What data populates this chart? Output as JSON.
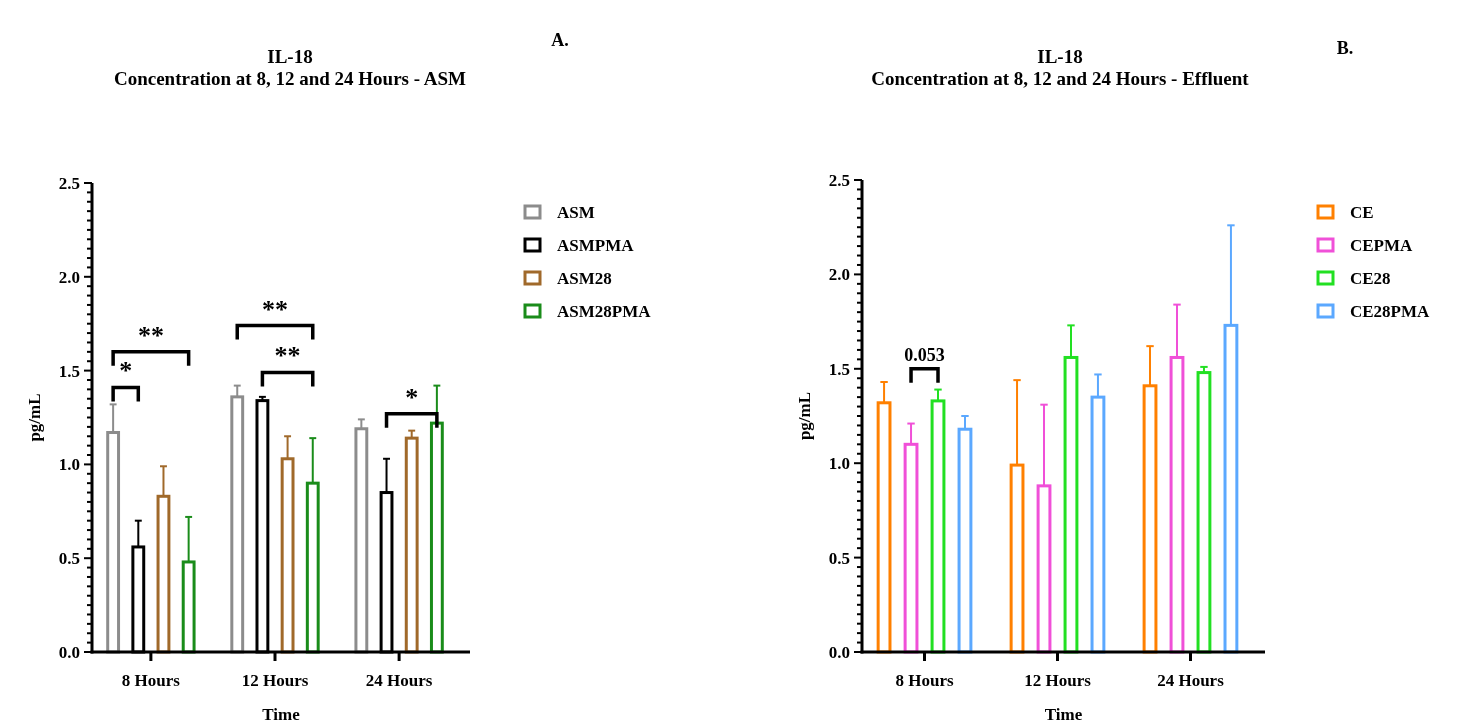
{
  "chart_data": [
    {
      "type": "bar",
      "title": "IL-18\nConcentration at 8, 12 and 24 Hours - ASM",
      "xlabel": "Time",
      "ylabel": "pg/mL",
      "categories": [
        "8 Hours",
        "12 Hours",
        "24 Hours"
      ],
      "series": [
        {
          "name": "ASM",
          "color": "#8c8c8c",
          "values": [
            1.17,
            1.36,
            1.19
          ],
          "errors": [
            [
              1.17,
              1.32
            ],
            [
              1.36,
              1.42
            ],
            [
              1.19,
              1.24
            ]
          ]
        },
        {
          "name": "ASMPMA",
          "color": "#000000",
          "values": [
            0.56,
            1.34,
            0.85
          ],
          "errors": [
            [
              0.56,
              0.7
            ],
            [
              1.34,
              1.36
            ],
            [
              0.85,
              1.03
            ]
          ]
        },
        {
          "name": "ASM28",
          "color": "#a0692a",
          "values": [
            0.83,
            1.03,
            1.14
          ],
          "errors": [
            [
              0.83,
              0.99
            ],
            [
              1.03,
              1.15
            ],
            [
              1.14,
              1.18
            ]
          ]
        },
        {
          "name": "ASM28PMA",
          "color": "#1a8c1a",
          "values": [
            0.48,
            0.9,
            1.22
          ],
          "errors": [
            [
              0.48,
              0.72
            ],
            [
              0.9,
              1.14
            ],
            [
              1.22,
              1.42
            ]
          ]
        }
      ],
      "ylim": [
        0,
        2.5
      ],
      "yticks": [
        {
          "value": 0,
          "label": "0.0"
        },
        {
          "value": 0.05,
          "label": null
        },
        {
          "value": 0.1,
          "label": null
        },
        {
          "value": 0.15,
          "label": null
        },
        {
          "value": 0.2,
          "label": null
        },
        {
          "value": 0.25,
          "label": null
        },
        {
          "value": 0.3,
          "label": null
        },
        {
          "value": 0.35,
          "label": null
        },
        {
          "value": 0.4,
          "label": null
        },
        {
          "value": 0.45,
          "label": null
        },
        {
          "value": 0.5,
          "label": "0.5"
        },
        {
          "value": 0.55,
          "label": null
        },
        {
          "value": 0.6,
          "label": null
        },
        {
          "value": 0.65,
          "label": null
        },
        {
          "value": 0.7,
          "label": null
        },
        {
          "value": 0.75,
          "label": null
        },
        {
          "value": 0.8,
          "label": null
        },
        {
          "value": 0.85,
          "label": null
        },
        {
          "value": 0.9,
          "label": null
        },
        {
          "value": 0.95,
          "label": null
        },
        {
          "value": 1,
          "label": "1.0"
        },
        {
          "value": 1.05,
          "label": null
        },
        {
          "value": 1.1,
          "label": null
        },
        {
          "value": 1.15,
          "label": null
        },
        {
          "value": 1.2,
          "label": null
        },
        {
          "value": 1.25,
          "label": null
        },
        {
          "value": 1.3,
          "label": null
        },
        {
          "value": 1.35,
          "label": null
        },
        {
          "value": 1.4,
          "label": null
        },
        {
          "value": 1.45,
          "label": null
        },
        {
          "value": 1.5,
          "label": "1.5"
        },
        {
          "value": 1.55,
          "label": null
        },
        {
          "value": 1.6,
          "label": null
        },
        {
          "value": 1.65,
          "label": null
        },
        {
          "value": 1.7,
          "label": null
        },
        {
          "value": 1.75,
          "label": null
        },
        {
          "value": 1.8,
          "label": null
        },
        {
          "value": 1.85,
          "label": null
        },
        {
          "value": 1.9,
          "label": null
        },
        {
          "value": 1.95,
          "label": null
        },
        {
          "value": 2,
          "label": "2.0"
        },
        {
          "value": 2.05,
          "label": null
        },
        {
          "value": 2.1,
          "label": null
        },
        {
          "value": 2.15,
          "label": null
        },
        {
          "value": 2.2,
          "label": null
        },
        {
          "value": 2.25,
          "label": null
        },
        {
          "value": 2.3,
          "label": null
        },
        {
          "value": 2.35,
          "label": null
        },
        {
          "value": 2.4,
          "label": null
        },
        {
          "value": 2.45,
          "label": null
        },
        {
          "value": 2.5,
          "label": "2.5"
        }
      ],
      "legend": "right",
      "grid": false,
      "annotations": [
        "A.",
        "*",
        "**",
        "**",
        "**",
        "*"
      ]
    },
    {
      "type": "bar",
      "title": "IL-18\nConcentration at 8, 12 and 24 Hours - Effluent",
      "xlabel": "Time",
      "ylabel": "pg/mL",
      "categories": [
        "8 Hours",
        "12 Hours",
        "24 Hours"
      ],
      "series": [
        {
          "name": "CE",
          "color": "#ff8000",
          "values": [
            1.32,
            0.99,
            1.41
          ],
          "errors": [
            [
              1.32,
              1.43
            ],
            [
              0.99,
              1.44
            ],
            [
              1.41,
              1.62
            ]
          ]
        },
        {
          "name": "CEPMA",
          "color": "#f050d8",
          "values": [
            1.1,
            0.88,
            1.56
          ],
          "errors": [
            [
              1.1,
              1.21
            ],
            [
              0.88,
              1.31
            ],
            [
              1.56,
              1.84
            ]
          ]
        },
        {
          "name": "CE28",
          "color": "#22e022",
          "values": [
            1.33,
            1.56,
            1.48
          ],
          "errors": [
            [
              1.33,
              1.39
            ],
            [
              1.56,
              1.73
            ],
            [
              1.48,
              1.51
            ]
          ]
        },
        {
          "name": "CE28PMA",
          "color": "#5ba8ff",
          "values": [
            1.18,
            1.35,
            1.73
          ],
          "errors": [
            [
              1.18,
              1.25
            ],
            [
              1.35,
              1.47
            ],
            [
              1.73,
              2.26
            ]
          ]
        }
      ],
      "ylim": [
        0,
        2.5
      ],
      "yticks": [
        {
          "value": 0,
          "label": "0.0"
        },
        {
          "value": 0.05,
          "label": null
        },
        {
          "value": 0.1,
          "label": null
        },
        {
          "value": 0.15,
          "label": null
        },
        {
          "value": 0.2,
          "label": null
        },
        {
          "value": 0.25,
          "label": null
        },
        {
          "value": 0.3,
          "label": null
        },
        {
          "value": 0.35,
          "label": null
        },
        {
          "value": 0.4,
          "label": null
        },
        {
          "value": 0.45,
          "label": null
        },
        {
          "value": 0.5,
          "label": "0.5"
        },
        {
          "value": 0.55,
          "label": null
        },
        {
          "value": 0.6,
          "label": null
        },
        {
          "value": 0.65,
          "label": null
        },
        {
          "value": 0.7,
          "label": null
        },
        {
          "value": 0.75,
          "label": null
        },
        {
          "value": 0.8,
          "label": null
        },
        {
          "value": 0.85,
          "label": null
        },
        {
          "value": 0.9,
          "label": null
        },
        {
          "value": 0.95,
          "label": null
        },
        {
          "value": 1,
          "label": "1.0"
        },
        {
          "value": 1.05,
          "label": null
        },
        {
          "value": 1.1,
          "label": null
        },
        {
          "value": 1.15,
          "label": null
        },
        {
          "value": 1.2,
          "label": null
        },
        {
          "value": 1.25,
          "label": null
        },
        {
          "value": 1.3,
          "label": null
        },
        {
          "value": 1.35,
          "label": null
        },
        {
          "value": 1.4,
          "label": null
        },
        {
          "value": 1.45,
          "label": null
        },
        {
          "value": 1.5,
          "label": "1.5"
        },
        {
          "value": 1.55,
          "label": null
        },
        {
          "value": 1.6,
          "label": null
        },
        {
          "value": 1.65,
          "label": null
        },
        {
          "value": 1.7,
          "label": null
        },
        {
          "value": 1.75,
          "label": null
        },
        {
          "value": 1.8,
          "label": null
        },
        {
          "value": 1.85,
          "label": null
        },
        {
          "value": 1.9,
          "label": null
        },
        {
          "value": 1.95,
          "label": null
        },
        {
          "value": 2,
          "label": "2.0"
        },
        {
          "value": 2.05,
          "label": null
        },
        {
          "value": 2.1,
          "label": null
        },
        {
          "value": 2.15,
          "label": null
        },
        {
          "value": 2.2,
          "label": null
        },
        {
          "value": 2.25,
          "label": null
        },
        {
          "value": 2.3,
          "label": null
        },
        {
          "value": 2.35,
          "label": null
        },
        {
          "value": 2.4,
          "label": null
        },
        {
          "value": 2.45,
          "label": null
        },
        {
          "value": 2.5,
          "label": "2.5"
        }
      ],
      "legend": "right",
      "grid": false,
      "annotations": [
        "B.",
        "0.053"
      ]
    }
  ]
}
